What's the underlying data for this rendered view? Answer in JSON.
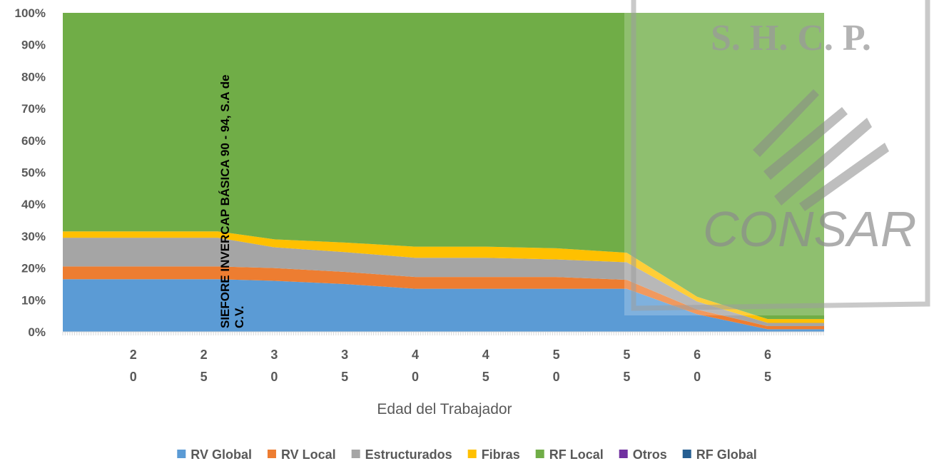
{
  "chart_data": {
    "type": "area",
    "stacked": true,
    "xlabel": "Edad del Trabajador",
    "ylabel": "",
    "title": "",
    "x": [
      15,
      20,
      25,
      26,
      30,
      35,
      40,
      45,
      50,
      55,
      60,
      65,
      69
    ],
    "xlim": [
      15,
      69
    ],
    "xticks": [
      {
        "value": 20,
        "lines": [
          "2",
          "0"
        ]
      },
      {
        "value": 25,
        "lines": [
          "2",
          "5"
        ]
      },
      {
        "value": 30,
        "lines": [
          "3",
          "0"
        ]
      },
      {
        "value": 35,
        "lines": [
          "3",
          "5"
        ]
      },
      {
        "value": 40,
        "lines": [
          "4",
          "0"
        ]
      },
      {
        "value": 45,
        "lines": [
          "4",
          "5"
        ]
      },
      {
        "value": 50,
        "lines": [
          "5",
          "0"
        ]
      },
      {
        "value": 55,
        "lines": [
          "5",
          "5"
        ]
      },
      {
        "value": 60,
        "lines": [
          "6",
          "0"
        ]
      },
      {
        "value": 65,
        "lines": [
          "6",
          "5"
        ]
      }
    ],
    "ylim": [
      0,
      100
    ],
    "yticks": [
      "0%",
      "10%",
      "20%",
      "30%",
      "40%",
      "50%",
      "60%",
      "70%",
      "80%",
      "90%",
      "100%"
    ],
    "series": [
      {
        "name": "RV Global",
        "color": "#5b9bd5",
        "values": [
          16.5,
          16.5,
          16.5,
          16.5,
          16,
          15,
          13.5,
          13.5,
          13.5,
          13.5,
          5.5,
          0.8,
          0.8
        ]
      },
      {
        "name": "RV Local",
        "color": "#ed7d31",
        "values": [
          4,
          4,
          4,
          4,
          4,
          3.8,
          3.7,
          3.7,
          3.7,
          2.8,
          1.5,
          1,
          1
        ]
      },
      {
        "name": "Estructurados",
        "color": "#a5a5a5",
        "values": [
          9,
          9,
          9,
          9,
          6.5,
          6.2,
          6,
          6,
          5.5,
          5.5,
          2.5,
          1,
          1
        ]
      },
      {
        "name": "Fibras",
        "color": "#ffc000",
        "values": [
          2,
          2,
          2,
          2,
          2.5,
          3,
          3.5,
          3.5,
          3.5,
          3,
          1.5,
          1.2,
          1.2
        ]
      },
      {
        "name": "RF Local",
        "color": "#70ad47",
        "values": [
          68.5,
          68.5,
          68.5,
          68.5,
          71,
          72,
          73.3,
          73.3,
          73.8,
          75.2,
          89,
          96,
          96
        ]
      },
      {
        "name": "Otros",
        "color": "#7030a0",
        "values": [
          0,
          0,
          0,
          0,
          0,
          0,
          0,
          0,
          0,
          0,
          0,
          0,
          0
        ]
      },
      {
        "name": "RF Global",
        "color": "#255e91",
        "values": [
          0,
          0,
          0,
          0,
          0,
          0,
          0,
          0,
          0,
          0,
          0,
          0,
          0
        ]
      }
    ],
    "annotations": [
      {
        "text_line1": "SIEFORE INVERCAP BÁSICA 90 - 94, S.A de",
        "text_line2": "C.V.",
        "x": 27,
        "orientation": "vertical"
      }
    ],
    "legend_position": "bottom",
    "grid": false
  },
  "watermark": {
    "text": "S. H. C. P.",
    "logo": "CONSAR",
    "icon": "feather-stripes-icon"
  }
}
